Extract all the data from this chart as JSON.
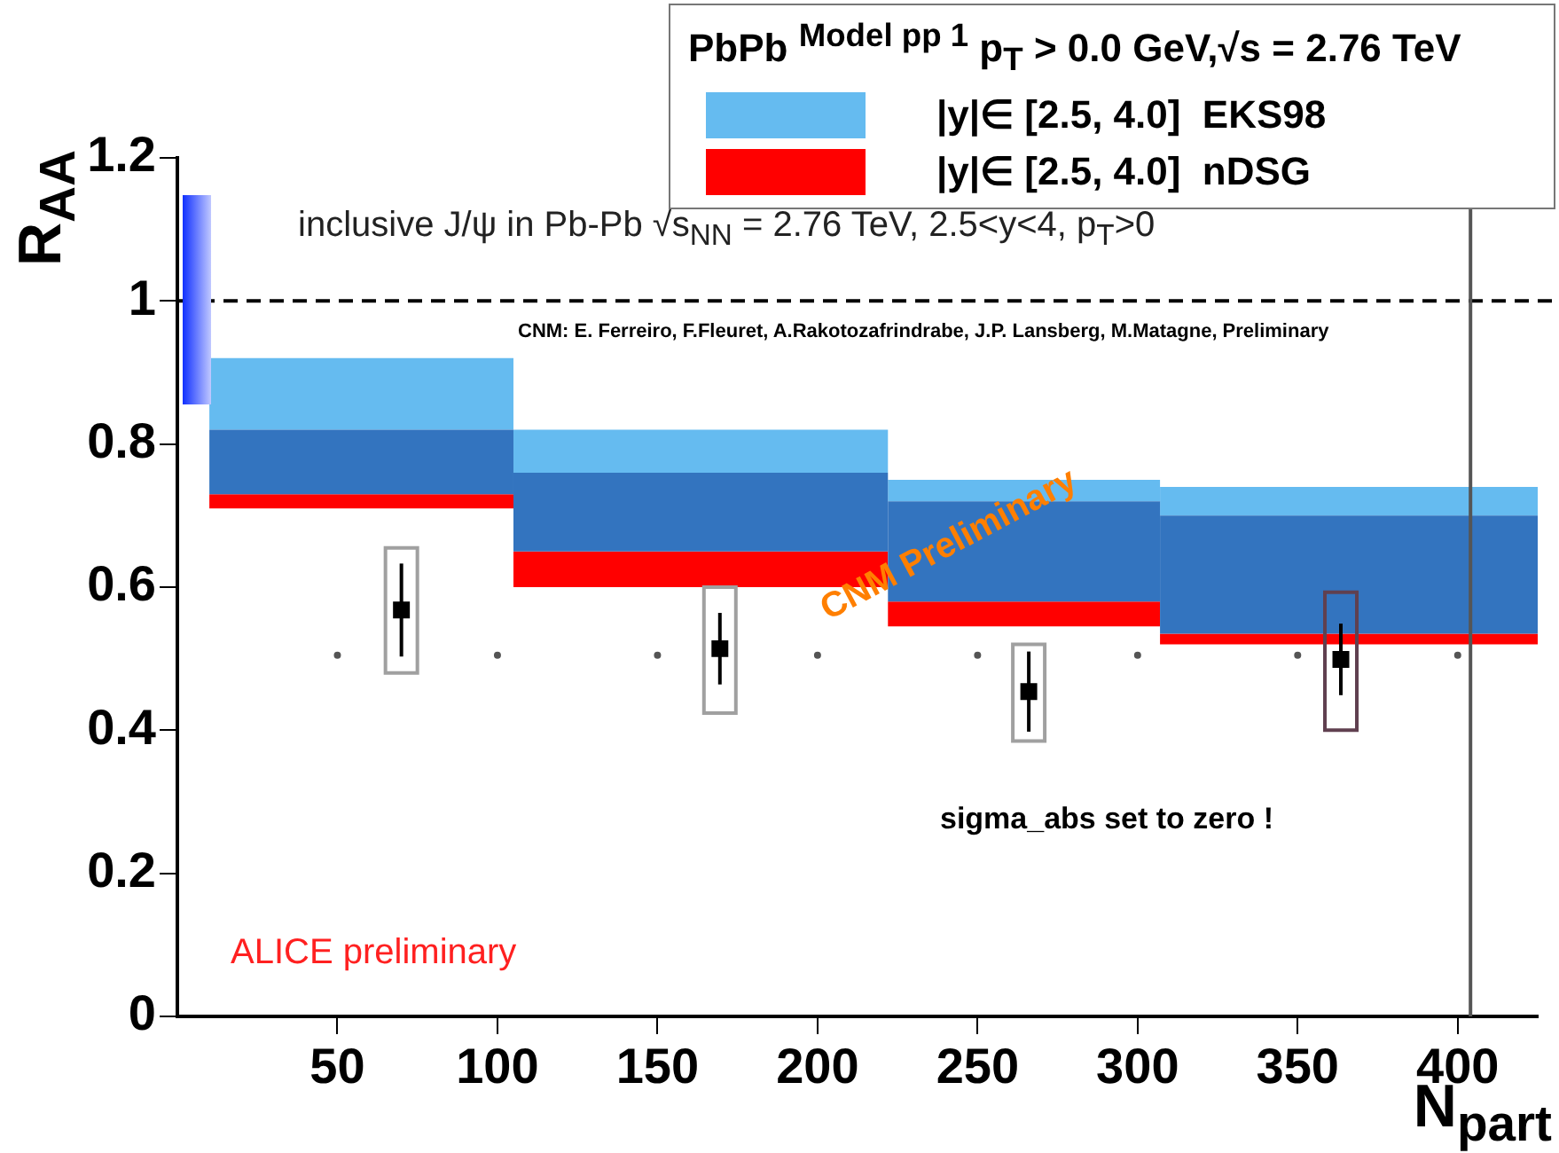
{
  "chart_data": {
    "type": "scatter",
    "xlabel": "N$_{part}$",
    "ylabel": "R$_{AA}$",
    "legend_title": "PbPb $^{Model pp 1}$ p$_{T}$ > 0.0 GeV,√s = 2.76 TeV",
    "legend": "top right",
    "grid": false,
    "xlim": [
      0,
      425
    ],
    "xticks": [
      50,
      100,
      150,
      200,
      250,
      300,
      350,
      400
    ],
    "ylim": [
      0,
      1.2
    ],
    "yticks": [
      0,
      0.2,
      0.4,
      0.6,
      0.8,
      1,
      1.2
    ],
    "series": [
      {
        "name": "|y|∈ [2.5, 4.0]  EKS98",
        "type": "histogram",
        "color": "#65bbf0",
        "bins": [
          10,
          105,
          222,
          307,
          425
        ],
        "base": [
          0.82,
          0.76,
          0.72,
          0.7
        ],
        "values": [
          0.1,
          0.06,
          0.03,
          0.04
        ]
      },
      {
        "name": "|y|∈ [2.5, 4.0]  nDSG",
        "type": "histogram",
        "color": "#ff0000",
        "bins": [
          10,
          105,
          222,
          307,
          425
        ],
        "base": [
          0.71,
          0.6,
          0.545,
          0.52
        ],
        "values": [
          0.02,
          0.05,
          0.035,
          0.015
        ]
      },
      {
        "type": "histogram",
        "color": "#3374bf",
        "bins": [
          10,
          105,
          222,
          307,
          425
        ],
        "base": [
          0.73,
          0.65,
          0.58,
          0.535
        ],
        "values": [
          0.09,
          0.11,
          0.14,
          0.165
        ]
      },
      {
        "type": "bar",
        "x": [
          70,
          169.5,
          266,
          363.5
        ],
        "base": [
          0.48,
          0.424,
          0.385,
          0.4
        ],
        "values": [
          0.175,
          0.176,
          0.135,
          0.193
        ],
        "colors": [
          "#a0a0a0",
          "#a0a0a0",
          "#a0a0a0",
          "#604050"
        ]
      },
      {
        "type": "scatter",
        "marker": "square",
        "color": "#000000",
        "x": [
          70,
          169.5,
          266,
          363.5
        ],
        "values": [
          0.568,
          0.514,
          0.454,
          0.499
        ],
        "errors": [
          0.065,
          0.05,
          0.056,
          0.05
        ]
      },
      {
        "type": "scatter",
        "marker": "circle",
        "color": "#555555",
        "x": [
          50,
          100,
          150,
          200,
          250,
          300,
          350,
          400
        ],
        "values": [
          0.505,
          0.505,
          0.505,
          0.505,
          0.505,
          0.505,
          0.505,
          0.505
        ]
      }
    ],
    "ref_lines": [
      {
        "axis": "y",
        "value": 1,
        "color": "#000000",
        "line_style": "dashed"
      },
      {
        "axis": "x",
        "value": 404,
        "color": "#555555",
        "line_style": "solid"
      }
    ],
    "annotations": [
      "inclusive J/ψ in Pb-Pb √s$_{NN}$ = 2.76 TeV, 2.5<y<4, p$_{T}$>0",
      "CNM: E. Ferreiro, F.Fleuret, A.Rakotozafrindrabe, J.P. Lansberg, M.Matagne, Preliminary",
      "CNM Preliminary",
      "sigma_abs set to zero !",
      "ALICE preliminary"
    ]
  }
}
